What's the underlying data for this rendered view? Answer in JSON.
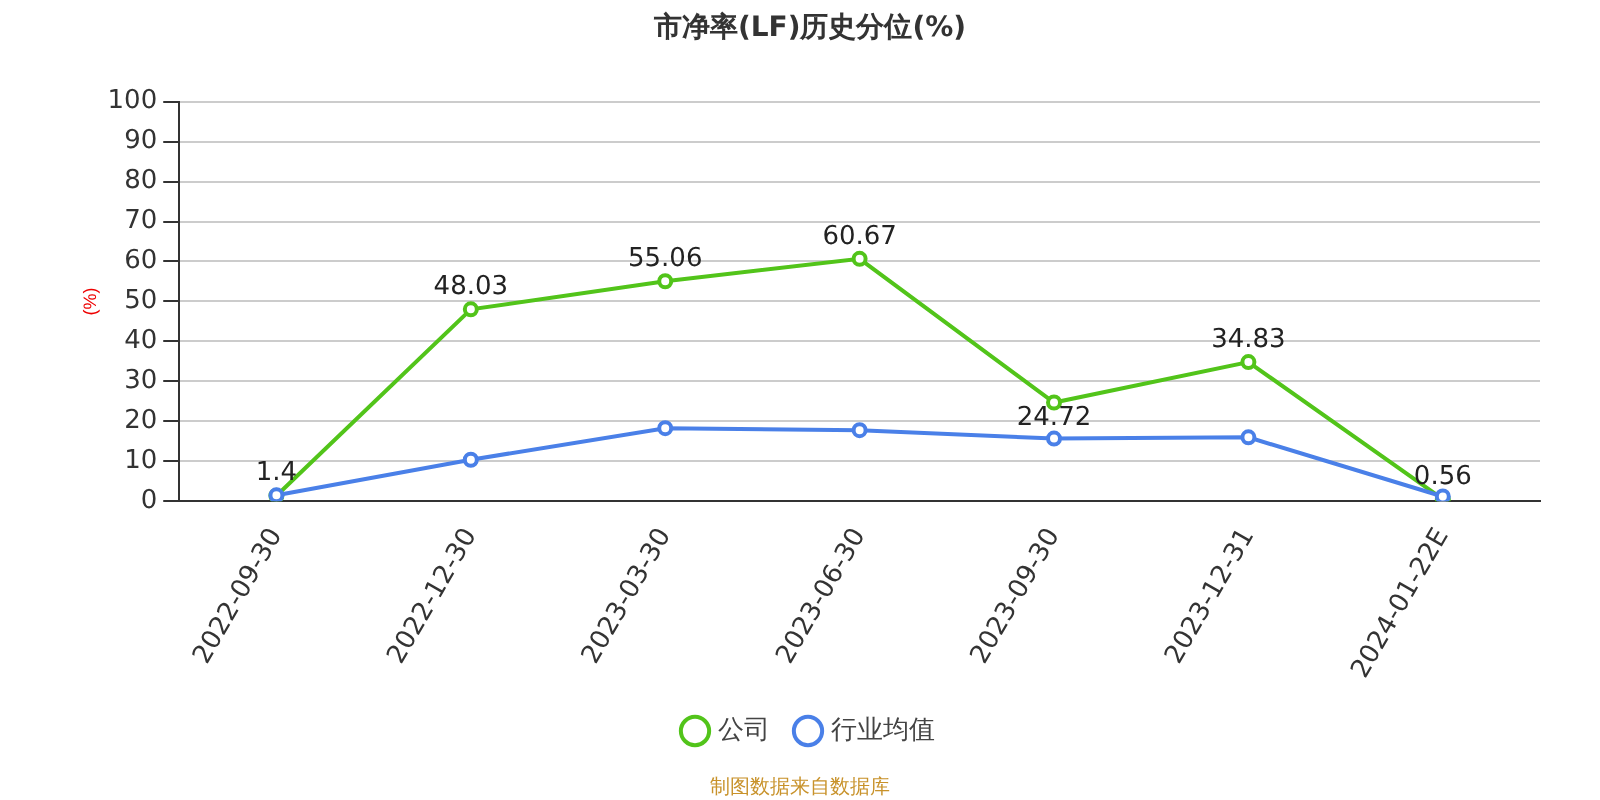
{
  "chart_data": {
    "type": "line",
    "title": "市净率(LF)历史分位(%)",
    "ylabel": "(%)",
    "categories": [
      "2022-09-30",
      "2022-12-30",
      "2023-03-30",
      "2023-06-30",
      "2023-09-30",
      "2023-12-31",
      "2024-01-22E"
    ],
    "series": [
      {
        "name": "公司",
        "color": "#52c41a",
        "values": [
          1.4,
          48.03,
          55.06,
          60.67,
          24.72,
          34.83,
          0.56
        ],
        "value_labels": [
          "1.4",
          "48.03",
          "55.06",
          "60.67",
          "24.72",
          "34.83",
          "0.56"
        ]
      },
      {
        "name": "行业均值",
        "color": "#4a80e8",
        "values": [
          1.5,
          10.4,
          18.3,
          17.8,
          15.7,
          16,
          1.2
        ]
      }
    ],
    "ylim": [
      0,
      100
    ],
    "yticks": [
      0,
      10,
      20,
      30,
      40,
      50,
      60,
      70,
      80,
      90,
      100
    ],
    "grid": "y",
    "legend": "bottom",
    "marker": "circle",
    "annotations": [
      "制图数据来自数据库"
    ]
  }
}
